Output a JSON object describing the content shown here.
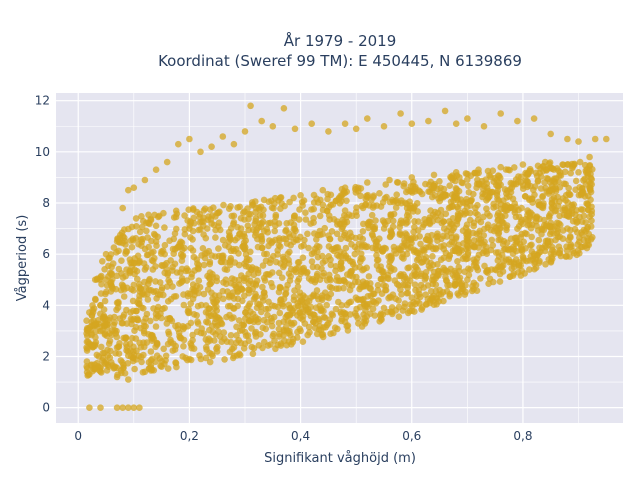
{
  "chart_data": {
    "type": "scatter",
    "title_line1": "År 1979 - 2019",
    "title_line2": "Koordinat (Sweref 99 TM): E 450445, N 6139869",
    "xlabel": "Signifikant våghöjd (m)",
    "ylabel": "Vågperiod (s)",
    "xlim": [
      -0.04,
      0.98
    ],
    "ylim": [
      -0.6,
      12.3
    ],
    "xticks": [
      0,
      0.2,
      0.4,
      0.6,
      0.8
    ],
    "xtick_labels": [
      "0",
      "0,2",
      "0,4",
      "0,6",
      "0,8"
    ],
    "yticks": [
      0,
      2,
      4,
      6,
      8,
      10,
      12
    ],
    "ytick_labels": [
      "0",
      "2",
      "4",
      "6",
      "8",
      "10",
      "12"
    ],
    "grid": true,
    "legend": "none",
    "marker_color": "#d4a520",
    "background_color": "#e5e5f0",
    "points": [
      [
        0.02,
        0.0
      ],
      [
        0.04,
        0.0
      ],
      [
        0.07,
        0.0
      ],
      [
        0.08,
        0.0
      ],
      [
        0.09,
        0.0
      ],
      [
        0.1,
        0.0
      ],
      [
        0.11,
        0.0
      ],
      [
        0.02,
        1.3
      ],
      [
        0.03,
        1.5
      ],
      [
        0.04,
        1.6
      ],
      [
        0.05,
        1.8
      ],
      [
        0.07,
        1.2
      ],
      [
        0.09,
        1.1
      ],
      [
        0.12,
        1.4
      ],
      [
        0.15,
        1.6
      ],
      [
        0.2,
        1.9
      ],
      [
        0.25,
        2.2
      ],
      [
        0.3,
        2.5
      ],
      [
        0.35,
        2.8
      ],
      [
        0.4,
        3.0
      ],
      [
        0.45,
        3.3
      ],
      [
        0.5,
        3.6
      ],
      [
        0.55,
        3.9
      ],
      [
        0.6,
        4.3
      ],
      [
        0.65,
        4.6
      ],
      [
        0.7,
        5.0
      ],
      [
        0.75,
        5.4
      ],
      [
        0.8,
        5.9
      ],
      [
        0.85,
        6.5
      ],
      [
        0.88,
        7.0
      ],
      [
        0.02,
        2.5
      ],
      [
        0.03,
        3.2
      ],
      [
        0.04,
        4.0
      ],
      [
        0.05,
        5.0
      ],
      [
        0.06,
        5.5
      ],
      [
        0.07,
        6.5
      ],
      [
        0.08,
        7.8
      ],
      [
        0.09,
        8.5
      ],
      [
        0.1,
        8.6
      ],
      [
        0.12,
        8.9
      ],
      [
        0.14,
        9.3
      ],
      [
        0.16,
        9.6
      ],
      [
        0.18,
        10.3
      ],
      [
        0.2,
        10.5
      ],
      [
        0.22,
        10.0
      ],
      [
        0.24,
        10.2
      ],
      [
        0.26,
        10.6
      ],
      [
        0.28,
        10.3
      ],
      [
        0.3,
        10.8
      ],
      [
        0.31,
        11.8
      ],
      [
        0.33,
        11.2
      ],
      [
        0.35,
        11.0
      ],
      [
        0.37,
        11.7
      ],
      [
        0.39,
        10.9
      ],
      [
        0.42,
        11.1
      ],
      [
        0.45,
        10.8
      ],
      [
        0.48,
        11.1
      ],
      [
        0.5,
        10.9
      ],
      [
        0.52,
        11.3
      ],
      [
        0.55,
        11.0
      ],
      [
        0.58,
        11.5
      ],
      [
        0.6,
        11.1
      ],
      [
        0.63,
        11.2
      ],
      [
        0.66,
        11.6
      ],
      [
        0.68,
        11.1
      ],
      [
        0.7,
        11.3
      ],
      [
        0.73,
        11.0
      ],
      [
        0.76,
        11.5
      ],
      [
        0.79,
        11.2
      ],
      [
        0.82,
        11.3
      ],
      [
        0.85,
        10.7
      ],
      [
        0.88,
        10.5
      ],
      [
        0.9,
        10.4
      ],
      [
        0.93,
        10.5
      ],
      [
        0.95,
        10.5
      ],
      [
        0.05,
        6.0
      ],
      [
        0.06,
        5.2
      ],
      [
        0.07,
        4.1
      ],
      [
        0.08,
        3.3
      ],
      [
        0.1,
        4.8
      ],
      [
        0.12,
        5.4
      ],
      [
        0.15,
        6.1
      ],
      [
        0.18,
        6.3
      ],
      [
        0.2,
        7.0
      ],
      [
        0.24,
        7.2
      ],
      [
        0.28,
        7.5
      ],
      [
        0.32,
        7.8
      ],
      [
        0.36,
        8.1
      ],
      [
        0.4,
        8.3
      ],
      [
        0.44,
        8.5
      ],
      [
        0.48,
        8.6
      ],
      [
        0.52,
        8.8
      ],
      [
        0.56,
        8.9
      ],
      [
        0.6,
        9.0
      ],
      [
        0.64,
        9.1
      ],
      [
        0.68,
        9.2
      ],
      [
        0.72,
        9.3
      ],
      [
        0.76,
        9.4
      ],
      [
        0.8,
        9.5
      ],
      [
        0.84,
        9.6
      ],
      [
        0.88,
        9.5
      ],
      [
        0.9,
        9.2
      ],
      [
        0.92,
        9.8
      ]
    ]
  }
}
